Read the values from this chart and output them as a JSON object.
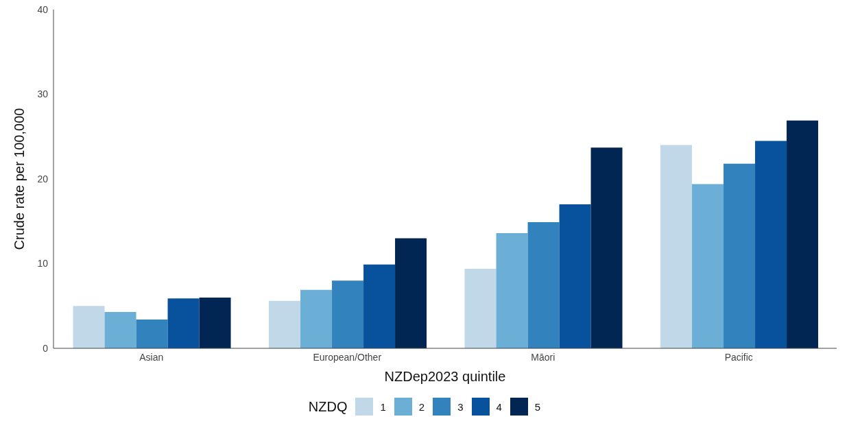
{
  "chart_data": {
    "type": "bar",
    "xlabel": "NZDep2023 quintile",
    "ylabel": "Crude rate per 100,000",
    "legend_title": "NZDQ",
    "legend": "bottom",
    "categories": [
      "Asian",
      "European/Other",
      "Māori",
      "Pacific"
    ],
    "series": [
      {
        "name": "1",
        "color": "#c0d8e8",
        "values": [
          5.0,
          5.6,
          9.4,
          24.0
        ]
      },
      {
        "name": "2",
        "color": "#6baed6",
        "values": [
          4.3,
          6.9,
          13.6,
          19.4
        ]
      },
      {
        "name": "3",
        "color": "#3182bd",
        "values": [
          3.4,
          8.0,
          14.9,
          21.8
        ]
      },
      {
        "name": "4",
        "color": "#08519c",
        "values": [
          5.9,
          9.9,
          17.0,
          24.5
        ]
      },
      {
        "name": "5",
        "color": "#022654",
        "values": [
          6.0,
          13.0,
          23.7,
          26.9
        ]
      }
    ],
    "ylim": [
      0,
      40
    ],
    "yticks": [
      0,
      10,
      20,
      30,
      40
    ],
    "grid": false
  }
}
